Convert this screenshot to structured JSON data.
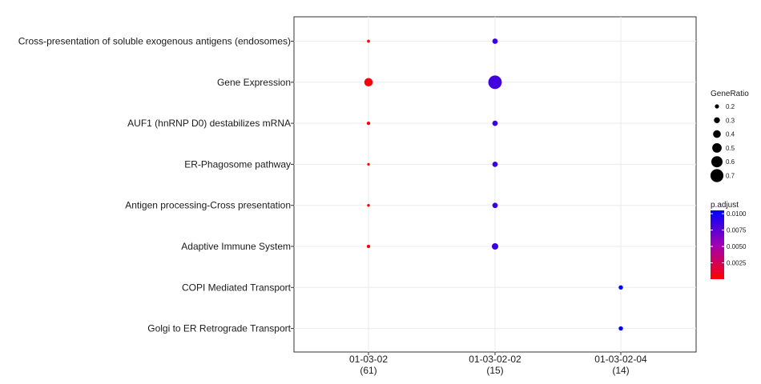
{
  "chart_data": {
    "type": "scatter",
    "title": "",
    "xlabel": "",
    "ylabel": "",
    "x_categories": [
      {
        "label": "01-03-02",
        "count": "(61)"
      },
      {
        "label": "01-03-02-02",
        "count": "(15)"
      },
      {
        "label": "01-03-02-04",
        "count": "(14)"
      }
    ],
    "y_categories": [
      "Cross-presentation of soluble exogenous antigens (endosomes)",
      "Gene Expression",
      "AUF1 (hnRNP D0) destabilizes mRNA",
      "ER-Phagosome pathway",
      "Antigen processing-Cross presentation",
      "Adaptive Immune System",
      "COPI Mediated Transport",
      "Golgi to ER Retrograde Transport"
    ],
    "points": [
      {
        "x": "01-03-02",
        "y": "Cross-presentation of soluble exogenous antigens (endosomes)",
        "gene_ratio": 0.13,
        "p_adjust": 0.0001
      },
      {
        "x": "01-03-02",
        "y": "Gene Expression",
        "gene_ratio": 0.44,
        "p_adjust": 0.0003
      },
      {
        "x": "01-03-02",
        "y": "AUF1 (hnRNP D0) destabilizes mRNA",
        "gene_ratio": 0.16,
        "p_adjust": 0.0001
      },
      {
        "x": "01-03-02",
        "y": "ER-Phagosome pathway",
        "gene_ratio": 0.11,
        "p_adjust": 0.0001
      },
      {
        "x": "01-03-02",
        "y": "Antigen processing-Cross presentation",
        "gene_ratio": 0.12,
        "p_adjust": 0.0001
      },
      {
        "x": "01-03-02",
        "y": "Adaptive Immune System",
        "gene_ratio": 0.16,
        "p_adjust": 0.0002
      },
      {
        "x": "01-03-02-02",
        "y": "Cross-presentation of soluble exogenous antigens (endosomes)",
        "gene_ratio": 0.27,
        "p_adjust": 0.0085
      },
      {
        "x": "01-03-02-02",
        "y": "Gene Expression",
        "gene_ratio": 0.73,
        "p_adjust": 0.0083
      },
      {
        "x": "01-03-02-02",
        "y": "AUF1 (hnRNP D0) destabilizes mRNA",
        "gene_ratio": 0.27,
        "p_adjust": 0.0085
      },
      {
        "x": "01-03-02-02",
        "y": "ER-Phagosome pathway",
        "gene_ratio": 0.27,
        "p_adjust": 0.0085
      },
      {
        "x": "01-03-02-02",
        "y": "Antigen processing-Cross presentation",
        "gene_ratio": 0.27,
        "p_adjust": 0.0085
      },
      {
        "x": "01-03-02-02",
        "y": "Adaptive Immune System",
        "gene_ratio": 0.33,
        "p_adjust": 0.0085
      },
      {
        "x": "01-03-02-04",
        "y": "COPI Mediated Transport",
        "gene_ratio": 0.21,
        "p_adjust": 0.0105
      },
      {
        "x": "01-03-02-04",
        "y": "Golgi to ER Retrograde Transport",
        "gene_ratio": 0.21,
        "p_adjust": 0.0105
      }
    ],
    "size_legend": {
      "title": "GeneRatio",
      "values": [
        0.2,
        0.3,
        0.4,
        0.5,
        0.6,
        0.7
      ],
      "labels": [
        "0.2",
        "0.3",
        "0.4",
        "0.5",
        "0.6",
        "0.7"
      ]
    },
    "color_legend": {
      "title": "p.adjust",
      "ticks": [
        0.0025,
        0.005,
        0.0075,
        0.01
      ],
      "labels": [
        "0.0025",
        "0.0050",
        "0.0075",
        "0.0100"
      ],
      "range": [
        0.0,
        0.0105
      ],
      "low_color": "#ff0000",
      "high_color": "#0000ff"
    },
    "grid": true,
    "legend_position": "right"
  }
}
